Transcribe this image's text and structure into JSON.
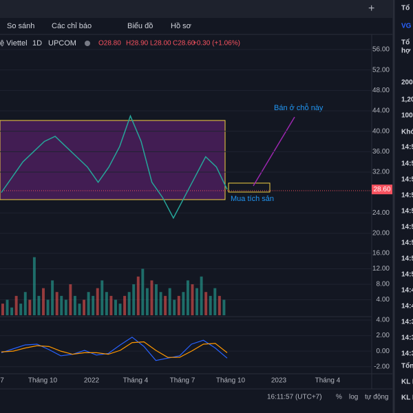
{
  "toolbar": {
    "items": [
      "So sánh",
      "Các chỉ báo",
      "Biểu đồ",
      "Hồ sơ"
    ]
  },
  "legend": {
    "symbol": "ệ Viettel",
    "interval": "1D",
    "exchange": "UPCOM",
    "open": "O28.80",
    "high": "H28.90",
    "low": "L28.00",
    "close": "C28.60",
    "change": "+0.30 (+1.06%)"
  },
  "chart_data": [
    {
      "type": "line",
      "name": "price",
      "values": [
        28,
        31,
        34,
        36,
        38,
        39,
        37,
        35,
        33,
        30,
        33,
        37,
        43,
        38,
        30,
        27,
        23,
        27,
        31,
        35,
        33,
        28.6
      ],
      "ylim": [
        20,
        56
      ],
      "yticks": [
        {
          "value": 56,
          "label": "56.00"
        },
        {
          "value": 52,
          "label": "52.00"
        },
        {
          "value": 48,
          "label": "48.00"
        },
        {
          "value": 44,
          "label": "44.00"
        },
        {
          "value": 40,
          "label": "40.00"
        },
        {
          "value": 36,
          "label": "36.00"
        },
        {
          "value": 32,
          "label": "32.00"
        },
        {
          "value": 24,
          "label": "24.00"
        },
        {
          "value": 20,
          "label": "20.00"
        }
      ],
      "last_price": {
        "value": 28.6,
        "label": "28.60"
      },
      "annotations": [
        "Bán ở chỗ này",
        "Mua tích sản"
      ]
    },
    {
      "type": "bar",
      "name": "volume",
      "values": [
        3,
        4,
        2,
        5,
        3,
        6,
        4,
        15,
        5,
        7,
        4,
        9,
        6,
        5,
        4,
        8,
        5,
        3,
        4,
        6,
        5,
        7,
        9,
        6,
        5,
        4,
        3,
        5,
        6,
        8,
        10,
        12,
        7,
        9,
        8,
        6,
        5,
        7,
        4,
        5,
        6,
        9,
        8,
        7,
        10,
        6,
        5,
        7,
        5,
        4
      ],
      "ylim": [
        0,
        16
      ],
      "yticks": [
        {
          "value": 16,
          "label": "16.00"
        },
        {
          "value": 12,
          "label": "12.00"
        },
        {
          "value": 8,
          "label": "8.00"
        },
        {
          "value": 4,
          "label": "4.00"
        }
      ]
    },
    {
      "type": "line",
      "name": "macd",
      "series": [
        {
          "color": "#2962ff",
          "values": [
            -0.2,
            0.3,
            0.8,
            0.9,
            0.2,
            -0.6,
            -0.4,
            0.1,
            -0.5,
            -0.3,
            0.8,
            1.8,
            0.6,
            -1.2,
            -0.9,
            -0.6,
            0.9,
            1.4,
            0.4,
            -0.9
          ]
        },
        {
          "color": "#ff9800",
          "values": [
            -0.1,
            0.0,
            0.4,
            0.7,
            0.6,
            0.0,
            -0.4,
            -0.2,
            -0.2,
            -0.4,
            0.1,
            1.1,
            1.2,
            0.1,
            -0.8,
            -0.8,
            0.0,
            0.9,
            1.0,
            -0.2
          ]
        }
      ],
      "ylim": [
        -3,
        4
      ],
      "yticks": [
        {
          "value": 4,
          "label": "4.00"
        },
        {
          "value": 2,
          "label": "2.00"
        },
        {
          "value": 0,
          "label": "0.00"
        },
        {
          "value": -2,
          "label": "-2.00"
        }
      ]
    }
  ],
  "x_labels": [
    "7",
    "Tháng 10",
    "2022",
    "Tháng 4",
    "Tháng 7",
    "Tháng 10",
    "2023",
    "Tháng 4"
  ],
  "status_bar": {
    "time": "16:11:57 (UTC+7)",
    "percent": "%",
    "log": "log",
    "auto": "tự động"
  },
  "side_panel": {
    "items": [
      "Tổ",
      "VG",
      "Tổ",
      "hợ",
      "200",
      "1,20",
      "100",
      "Khớ",
      "14:5",
      "14:5",
      "14:5",
      "14:5",
      "14:5",
      "14:5",
      "14:5",
      "14:5",
      "14:5",
      "14:4",
      "14:4",
      "14:3",
      "14:3",
      "14:3",
      "Tổng",
      "KL M",
      "KL B"
    ]
  }
}
